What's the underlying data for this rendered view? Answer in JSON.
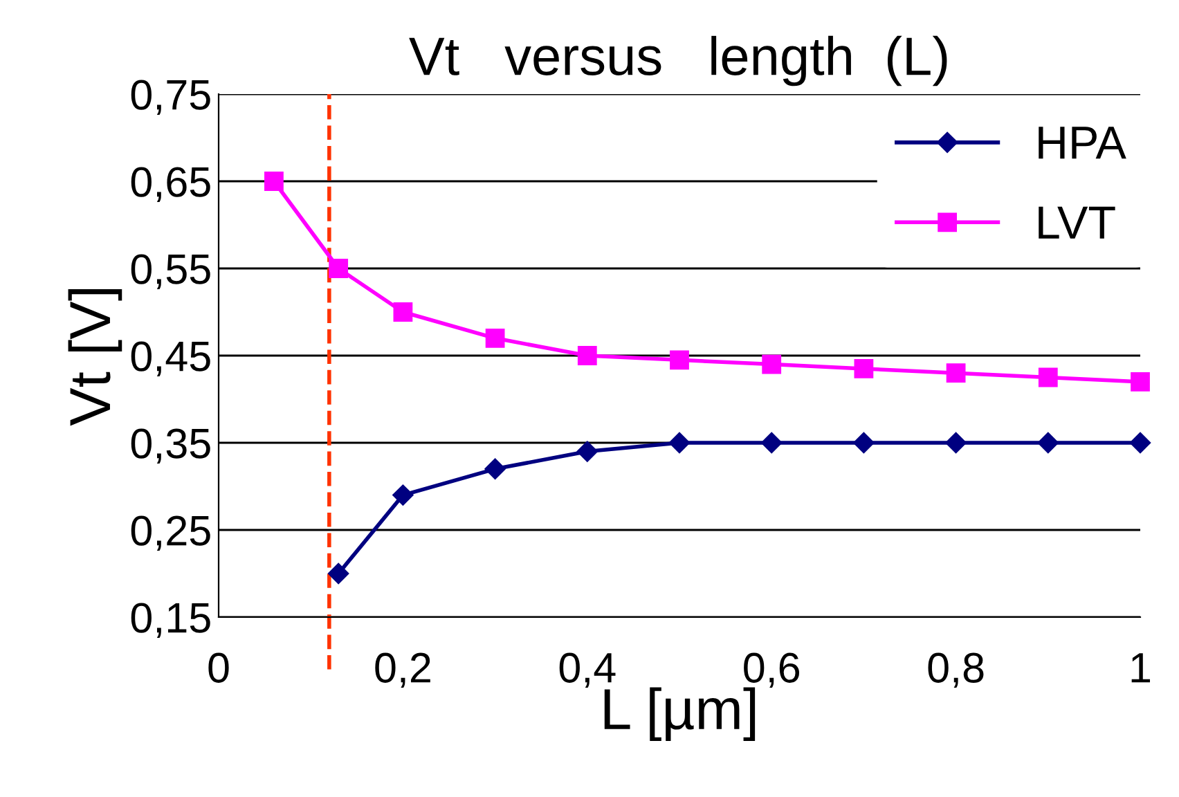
{
  "chart_data": {
    "type": "line",
    "title": "Vt   versus   length  (L)",
    "xlabel": "L [µm]",
    "ylabel": "Vt [V]",
    "xlim": [
      0,
      1
    ],
    "ylim": [
      0.15,
      0.75
    ],
    "xticks": [
      0,
      {
        "value": 0.2,
        "label": "0,2"
      },
      {
        "value": 0.4,
        "label": "0,4"
      },
      {
        "value": 0.6,
        "label": "0,6"
      },
      {
        "value": 0.8,
        "label": "0,8"
      },
      1
    ],
    "yticks": [
      {
        "value": 0.15,
        "label": "0,15"
      },
      {
        "value": 0.25,
        "label": "0,25"
      },
      {
        "value": 0.35,
        "label": "0,35"
      },
      {
        "value": 0.45,
        "label": "0,45"
      },
      {
        "value": 0.55,
        "label": "0,55"
      },
      {
        "value": 0.65,
        "label": "0,65"
      },
      {
        "value": 0.75,
        "label": "0,75"
      }
    ],
    "grid": "y",
    "legend": "top right",
    "series": [
      {
        "name": "HPA",
        "color": "#000080",
        "marker": "diamond",
        "x": [
          0.13,
          0.2,
          0.3,
          0.4,
          0.5,
          0.6,
          0.7,
          0.8,
          0.9,
          1.0
        ],
        "values": [
          0.2,
          0.29,
          0.32,
          0.34,
          0.35,
          0.35,
          0.35,
          0.35,
          0.35,
          0.35
        ]
      },
      {
        "name": "LVT",
        "color": "#ff00ff",
        "marker": "square",
        "x": [
          0.06,
          0.13,
          0.2,
          0.3,
          0.4,
          0.5,
          0.6,
          0.7,
          0.8,
          0.9,
          1.0
        ],
        "values": [
          0.65,
          0.55,
          0.5,
          0.47,
          0.45,
          0.445,
          0.44,
          0.435,
          0.43,
          0.425,
          0.42
        ]
      }
    ],
    "ref_lines": [
      {
        "axis": "x",
        "value": 0.12,
        "color": "#ff3300",
        "line_style": "dashed"
      }
    ]
  }
}
